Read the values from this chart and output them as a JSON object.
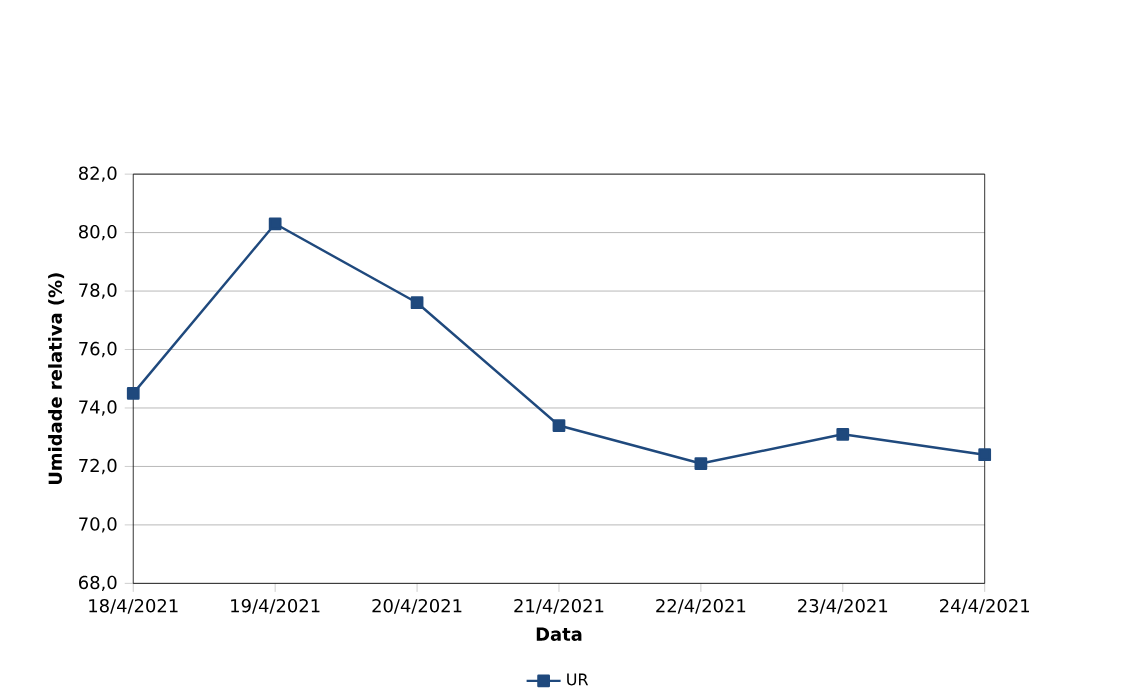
{
  "chart_data": {
    "type": "line",
    "xlabel": "Data",
    "ylabel": "Umidade relativa (%)",
    "categories": [
      "18/4/2021",
      "19/4/2021",
      "20/4/2021",
      "21/4/2021",
      "22/4/2021",
      "23/4/2021",
      "24/4/2021"
    ],
    "series": [
      {
        "name": "UR",
        "color": "#1f497d",
        "values": [
          74.5,
          80.3,
          77.6,
          73.4,
          72.1,
          73.1,
          72.4
        ]
      }
    ],
    "ylim": [
      68,
      82
    ],
    "yticks": [
      {
        "value": 68,
        "label": "68,0"
      },
      {
        "value": 70,
        "label": "70,0"
      },
      {
        "value": 72,
        "label": "72,0"
      },
      {
        "value": 74,
        "label": "74,0"
      },
      {
        "value": 76,
        "label": "76,0"
      },
      {
        "value": 78,
        "label": "78,0"
      },
      {
        "value": 80,
        "label": "80,0"
      },
      {
        "value": 82,
        "label": "82,0"
      }
    ],
    "grid": "y",
    "legend": "bottom",
    "marker": "square",
    "line_style": "solid"
  }
}
